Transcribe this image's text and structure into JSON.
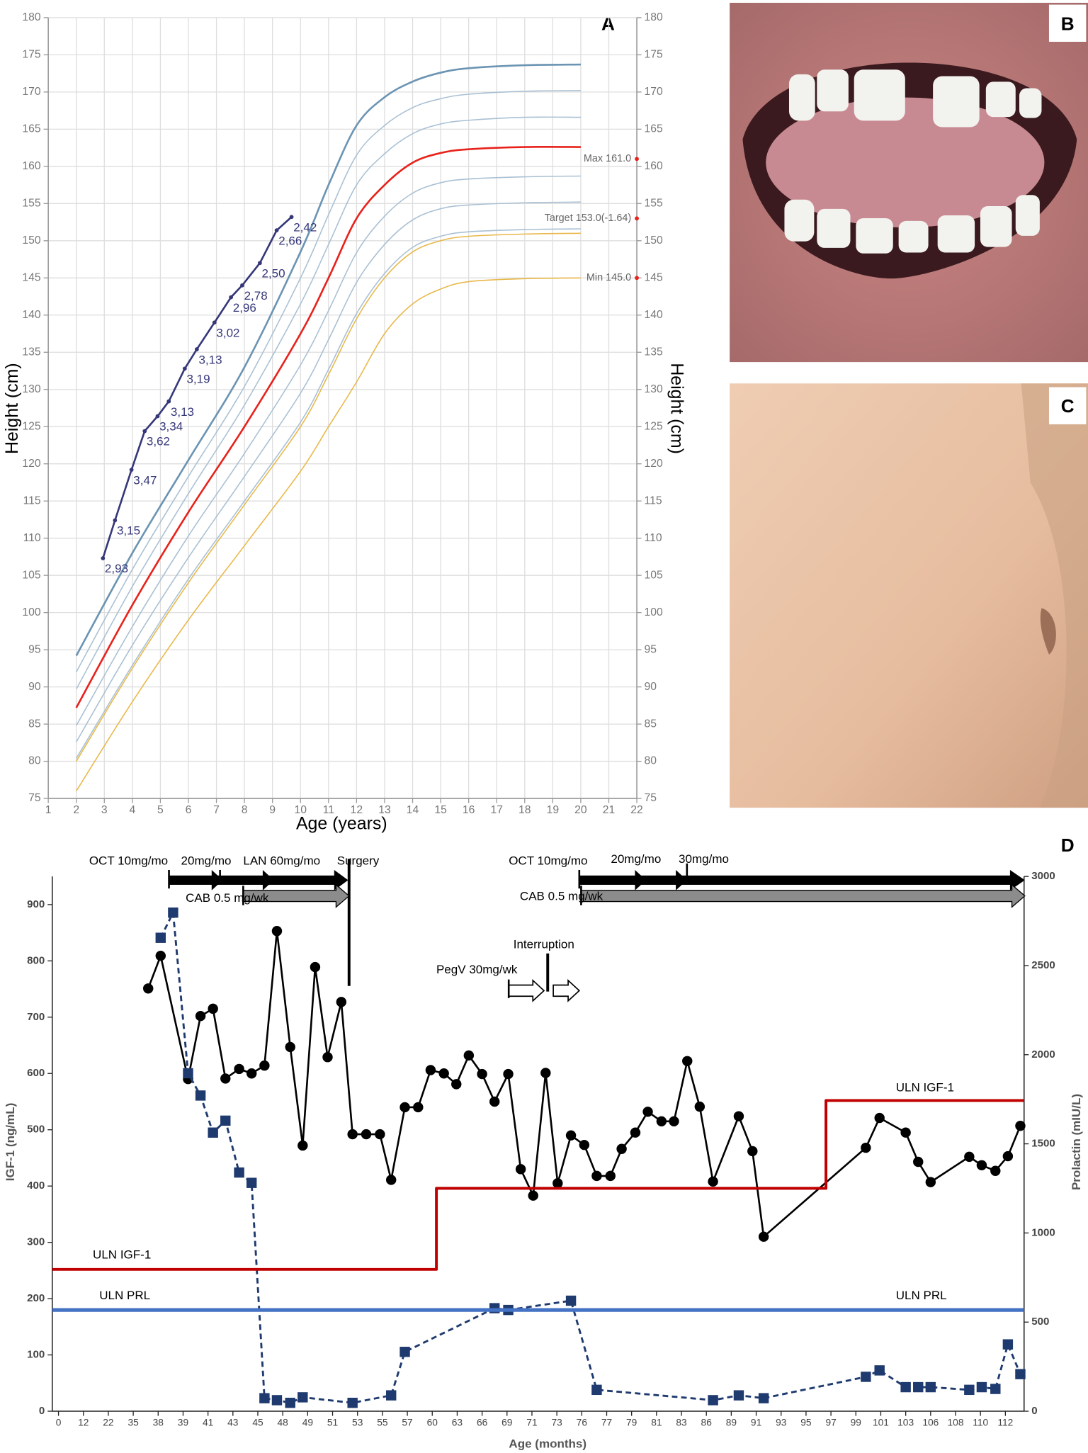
{
  "chart_data": [
    {
      "type": "line",
      "panel_label": "A",
      "x_label": "Age (years)",
      "y_label": "Height (cm)",
      "y2_label": "Height (cm)",
      "xlim": [
        1,
        22
      ],
      "xticks": [
        1,
        2,
        3,
        4,
        5,
        6,
        7,
        8,
        9,
        10,
        11,
        12,
        13,
        14,
        15,
        16,
        17,
        18,
        19,
        20,
        21,
        22
      ],
      "ylim": [
        75,
        180
      ],
      "yticks": [
        75,
        80,
        85,
        90,
        95,
        100,
        105,
        110,
        115,
        120,
        125,
        130,
        135,
        140,
        145,
        150,
        155,
        160,
        165,
        170,
        175,
        180
      ],
      "y2lim": [
        75,
        180
      ],
      "y2ticks": [
        75,
        80,
        85,
        90,
        95,
        100,
        105,
        110,
        115,
        120,
        125,
        130,
        135,
        140,
        145,
        150,
        155,
        160,
        165,
        170,
        175,
        180
      ],
      "grid": true,
      "series": [
        {
          "color": "#6b94b3",
          "width": 2,
          "smooth": true,
          "x": [
            2,
            4,
            6,
            8,
            10,
            11,
            12,
            13,
            14,
            15,
            16,
            18,
            20
          ],
          "values": [
            94.2,
            108,
            120.5,
            133,
            148.5,
            157.5,
            165.5,
            169.3,
            171.4,
            172.6,
            173.2,
            173.6,
            173.7
          ]
        },
        {
          "color": "#a9c0d3",
          "width": 1.2,
          "smooth": true,
          "x": [
            2,
            4,
            6,
            8,
            10,
            11,
            12,
            13,
            14,
            15,
            16,
            18,
            20
          ],
          "values": [
            92,
            105.8,
            118.3,
            130.4,
            145,
            153.5,
            161.5,
            165.5,
            167.9,
            169.1,
            169.7,
            170.1,
            170.2
          ]
        },
        {
          "color": "#a9c0d3",
          "width": 1.2,
          "smooth": true,
          "x": [
            2,
            4,
            6,
            8,
            10,
            11,
            12,
            13,
            14,
            15,
            16,
            18,
            20
          ],
          "values": [
            89.7,
            103.5,
            116,
            127.9,
            141.5,
            149.5,
            157.5,
            161.7,
            164.4,
            165.7,
            166.2,
            166.6,
            166.6
          ]
        },
        {
          "color": "#e8221b",
          "width": 2,
          "smooth": true,
          "x": [
            2,
            4,
            6,
            8,
            10,
            11,
            12,
            13,
            14,
            15,
            16,
            18,
            20
          ],
          "values": [
            87.2,
            101,
            113.5,
            125,
            137.5,
            145,
            153,
            157.5,
            160.5,
            161.8,
            162.3,
            162.6,
            162.6
          ]
        },
        {
          "color": "#a9c0d3",
          "width": 1.2,
          "smooth": true,
          "x": [
            2,
            4,
            6,
            8,
            10,
            11,
            12,
            13,
            14,
            15,
            16,
            18,
            20
          ],
          "values": [
            84.8,
            98.1,
            110.3,
            121.4,
            133.3,
            140.6,
            148.4,
            153.3,
            156.4,
            157.8,
            158.3,
            158.6,
            158.7
          ]
        },
        {
          "color": "#a9c0d3",
          "width": 1.2,
          "smooth": true,
          "x": [
            2,
            4,
            6,
            8,
            10,
            11,
            12,
            13,
            14,
            15,
            16,
            18,
            20
          ],
          "values": [
            82.6,
            95.6,
            107.4,
            118.3,
            129.5,
            136.7,
            144.4,
            149.5,
            152.8,
            154.3,
            154.8,
            155.1,
            155.2
          ]
        },
        {
          "color": "#a9c0d3",
          "width": 1.2,
          "smooth": true,
          "x": [
            2,
            4,
            6,
            8,
            10,
            11,
            12,
            13,
            14,
            15,
            16,
            18,
            20
          ],
          "values": [
            80.4,
            92.9,
            104.5,
            115,
            125.6,
            132.7,
            140.2,
            145.6,
            149.1,
            150.6,
            151.2,
            151.5,
            151.6
          ]
        },
        {
          "color": "#e8b84a",
          "width": 1.2,
          "smooth": true,
          "x": [
            2,
            4,
            6,
            8,
            10,
            11,
            12,
            13,
            14,
            15,
            16,
            18,
            20
          ],
          "values": [
            80,
            92.5,
            104,
            114.5,
            125,
            132,
            139.5,
            145,
            148.5,
            150,
            150.6,
            150.9,
            151
          ]
        },
        {
          "color": "#e8b84a",
          "width": 1.2,
          "smooth": true,
          "x": [
            2,
            4,
            6,
            8,
            10,
            11,
            12,
            13,
            14,
            15,
            16,
            18,
            20
          ],
          "values": [
            76,
            88,
            99,
            109,
            119,
            125,
            131,
            137.5,
            141.5,
            143.5,
            144.5,
            144.9,
            145
          ]
        },
        {
          "color": "#353779",
          "width": 2,
          "marker": "circle",
          "marker_size": 2.2,
          "x": [
            2.95,
            3.38,
            3.97,
            4.44,
            4.9,
            5.3,
            5.87,
            6.3,
            6.93,
            7.52,
            7.92,
            8.55,
            9.15,
            9.68
          ],
          "values": [
            107.3,
            112.4,
            119.2,
            124.4,
            126.4,
            128.4,
            132.8,
            135.4,
            139,
            142.4,
            144,
            147,
            151.4,
            153.2
          ],
          "point_labels": [
            "2,93",
            "3,15",
            "3,47",
            "3,62",
            "3,34",
            "3,13",
            "3,19",
            "3,13",
            "3,02",
            "2,96",
            "2,78",
            "2,50",
            "2,66",
            "2,42"
          ]
        }
      ],
      "annotations": [
        {
          "text": "Max 161.0",
          "y": 161,
          "color": "#e8221b"
        },
        {
          "text": "Target 153.0(-1.64)",
          "y": 153,
          "color": "#e8221b"
        },
        {
          "text": "Min 145.0",
          "y": 145,
          "color": "#e8221b"
        }
      ]
    },
    {
      "type": "line",
      "panel_label": "D",
      "x_label": "Age (months)",
      "y_label": "IGF-1 (ng/mL)",
      "y2_label": "Prolactin (mIU/L)",
      "xticks_evenly_spaced": true,
      "xlim": [
        -3,
        113.5
      ],
      "xticks": [
        0,
        12,
        22,
        35,
        38,
        39,
        41,
        43,
        45,
        48,
        49,
        51,
        53,
        55,
        57,
        60,
        63,
        66,
        69,
        71,
        73,
        76,
        77,
        79,
        81,
        83,
        86,
        89,
        91,
        93,
        95,
        97,
        99,
        101,
        103,
        106,
        108,
        110,
        112
      ],
      "ylim": [
        0,
        950
      ],
      "yticks": [
        0,
        100,
        200,
        300,
        400,
        500,
        600,
        700,
        800,
        900
      ],
      "y2lim": [
        0,
        3000
      ],
      "y2ticks": [
        0,
        500,
        1000,
        1500,
        2000,
        2500,
        3000
      ],
      "grid": false,
      "series": [
        {
          "color": "#000000",
          "width": 2,
          "marker": "circle",
          "marker_size": 5.5,
          "x": [
            36.8,
            38.1,
            39.4,
            40.4,
            41.4,
            42.4,
            43.5,
            44.5,
            45.8,
            47.3,
            48.3,
            48.8,
            49.6,
            50.6,
            51.7,
            52.6,
            53.7,
            54.8,
            55.7,
            56.8,
            58.3,
            59.8,
            61.4,
            62.9,
            64.4,
            66,
            67.5,
            69.1,
            70.1,
            71.1,
            72.1,
            73.1,
            74.7,
            76.1,
            76.6,
            77.3,
            78.2,
            79.3,
            80.3,
            81.4,
            82.4,
            83.7,
            85.2,
            86.8,
            89.6,
            90.7,
            91.6,
            99.8,
            100.9,
            103,
            104.5,
            106,
            109.1,
            110.1,
            111.2,
            112.2,
            113.2
          ],
          "values": [
            751,
            809,
            590,
            702,
            715,
            591,
            608,
            600,
            614,
            853,
            647,
            472,
            789,
            629,
            727,
            492,
            492,
            492,
            411,
            540,
            540,
            606,
            600,
            581,
            632,
            599,
            550,
            599,
            430,
            383,
            601,
            405,
            490,
            473,
            418,
            418,
            466,
            495,
            532,
            515,
            515,
            622,
            541,
            408,
            524,
            462,
            310,
            468,
            521,
            495,
            443,
            407,
            452,
            437,
            427,
            453,
            507
          ]
        },
        {
          "color": "#1f3a6e",
          "width": 2.2,
          "dash": true,
          "marker": "square",
          "marker_size": 11,
          "axis": "y2",
          "x": [
            38.1,
            38.6,
            39.4,
            40.4,
            41.4,
            42.4,
            43.5,
            44.5,
            45.8,
            47.3,
            48.3,
            48.8,
            52.6,
            55.7,
            56.8,
            67.5,
            69.1,
            74.7,
            76.6,
            86.8,
            89.6,
            91.6,
            99.8,
            100.9,
            103,
            104.5,
            106,
            109.1,
            110.1,
            111.2,
            112.2,
            113.2
          ],
          "values": [
            2656,
            2797,
            1896,
            1771,
            1563,
            1630,
            1339,
            1281,
            73,
            62,
            47,
            78,
            47,
            89,
            333,
            578,
            568,
            620,
            120,
            62,
            89,
            73,
            193,
            229,
            135,
            135,
            135,
            120,
            135,
            125,
            375,
            208
          ]
        },
        {
          "color": "#c00000",
          "width": 3,
          "step": true,
          "x": [
            -3,
            60.5,
            96.6
          ],
          "values": [
            252,
            396,
            552
          ]
        },
        {
          "color": "#4472c4",
          "width": 4,
          "step": true,
          "axis": "y2",
          "x": [
            -3
          ],
          "values": [
            568
          ]
        }
      ],
      "annotations": [
        "OCT 10mg/mo",
        "20mg/mo",
        "LAN 60mg/mo",
        "Surgery",
        "CAB 0.5 mg/wk",
        "PegV 30mg/wk",
        "Interruption",
        "OCT 10mg/mo",
        "20mg/mo",
        "30mg/mo",
        "CAB 0.5 mg/wk",
        "ULN IGF-1",
        "ULN IGF-1",
        "ULN PRL",
        "ULN PRL"
      ]
    }
  ],
  "photo_panels": [
    {
      "panel_label": "B"
    },
    {
      "panel_label": "C"
    }
  ]
}
